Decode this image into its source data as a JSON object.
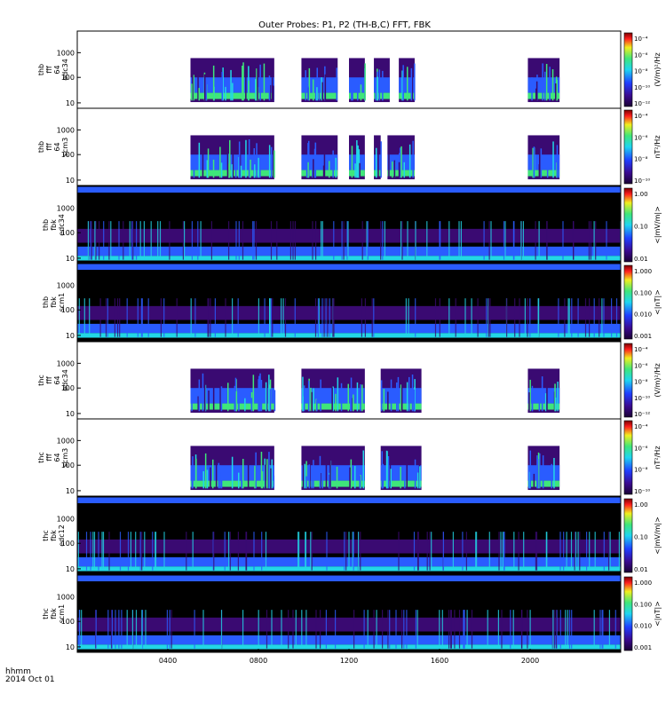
{
  "title": "Outer Probes: P1, P2 (TH-B,C) FFT, FBK",
  "footer": {
    "time_label": "hhmm",
    "date": "2014 Oct 01"
  },
  "x_axis": {
    "ticks": [
      "0400",
      "0800",
      "1200",
      "1600",
      "2000"
    ],
    "tick_hours": [
      4,
      8,
      12,
      16,
      20
    ],
    "range_hours": [
      0,
      24
    ]
  },
  "colors": {
    "background": "#ffffff",
    "fill_dark": "#000000",
    "fill_purple": "#3a0a72",
    "fill_blue": "#2a5cff",
    "fill_cyan": "#22d7e6",
    "fill_green": "#3fe67a",
    "fill_yellow": "#f0f020",
    "fill_red": "#ff1e1e"
  },
  "colorbars": {
    "fft_e": {
      "labels": [
        "10⁻⁴",
        "10⁻⁶",
        "10⁻⁸",
        "10⁻¹⁰",
        "10⁻¹²"
      ],
      "unit": "(V/m)²/Hz"
    },
    "fft_b": {
      "labels": [
        "10⁻⁴",
        "10⁻⁶",
        "10⁻⁸",
        "10⁻¹⁰"
      ],
      "unit": "nT²/Hz"
    },
    "fbk_e": {
      "labels": [
        "1.00",
        "0.10",
        "0.01"
      ],
      "unit": "<|mV/m|>"
    },
    "fbk_b": {
      "labels": [
        "1.000",
        "0.100",
        "0.010",
        "0.001"
      ],
      "unit": "<|nT|>"
    }
  },
  "chart_data": [
    {
      "type": "heatmap",
      "label_lines": [
        "thb",
        "fff",
        "64",
        "edc34"
      ],
      "yticks": [
        "1000",
        "100",
        "10"
      ],
      "colorbar": "fft_e",
      "kind": "fft",
      "segments": [
        {
          "start": 5.0,
          "end": 8.7
        },
        {
          "start": 9.9,
          "end": 11.5
        },
        {
          "start": 12.0,
          "end": 12.7
        },
        {
          "start": 13.1,
          "end": 13.8
        },
        {
          "start": 14.2,
          "end": 14.9
        },
        {
          "start": 19.9,
          "end": 21.3
        }
      ]
    },
    {
      "type": "heatmap",
      "label_lines": [
        "thb",
        "fff",
        "64",
        "scm3"
      ],
      "yticks": [
        "1000",
        "100",
        "10"
      ],
      "colorbar": "fft_b",
      "kind": "fft",
      "segments": [
        {
          "start": 5.0,
          "end": 8.7
        },
        {
          "start": 9.9,
          "end": 11.5
        },
        {
          "start": 12.0,
          "end": 12.7
        },
        {
          "start": 13.1,
          "end": 13.4
        },
        {
          "start": 13.7,
          "end": 14.9
        },
        {
          "start": 19.9,
          "end": 21.3
        }
      ]
    },
    {
      "type": "heatmap",
      "label_lines": [
        "thb",
        "fbk",
        "edc34"
      ],
      "yticks": [
        "1000",
        "100",
        "10"
      ],
      "colorbar": "fbk_e",
      "kind": "fbk"
    },
    {
      "type": "heatmap",
      "label_lines": [
        "thb",
        "fbk",
        "scm1"
      ],
      "yticks": [
        "1000",
        "100",
        "10"
      ],
      "colorbar": "fbk_b",
      "kind": "fbk"
    },
    {
      "type": "heatmap",
      "label_lines": [
        "thc",
        "fff",
        "64",
        "edc34"
      ],
      "yticks": [
        "1000",
        "100",
        "10"
      ],
      "colorbar": "fft_e",
      "kind": "fft",
      "segments": [
        {
          "start": 5.0,
          "end": 8.7
        },
        {
          "start": 9.9,
          "end": 12.7
        },
        {
          "start": 13.4,
          "end": 15.2
        },
        {
          "start": 19.9,
          "end": 21.3
        }
      ]
    },
    {
      "type": "heatmap",
      "label_lines": [
        "thc",
        "fff",
        "64",
        "scm3"
      ],
      "yticks": [
        "1000",
        "100",
        "10"
      ],
      "colorbar": "fft_b",
      "kind": "fft",
      "segments": [
        {
          "start": 5.0,
          "end": 8.7
        },
        {
          "start": 9.9,
          "end": 12.7
        },
        {
          "start": 13.4,
          "end": 15.2
        },
        {
          "start": 19.9,
          "end": 21.3
        }
      ]
    },
    {
      "type": "heatmap",
      "label_lines": [
        "thc",
        "fbk",
        "edc12"
      ],
      "yticks": [
        "1000",
        "100",
        "10"
      ],
      "colorbar": "fbk_e",
      "kind": "fbk"
    },
    {
      "type": "heatmap",
      "label_lines": [
        "thc",
        "fbk",
        "scm1"
      ],
      "yticks": [
        "1000",
        "100",
        "10"
      ],
      "colorbar": "fbk_b",
      "kind": "fbk"
    }
  ]
}
